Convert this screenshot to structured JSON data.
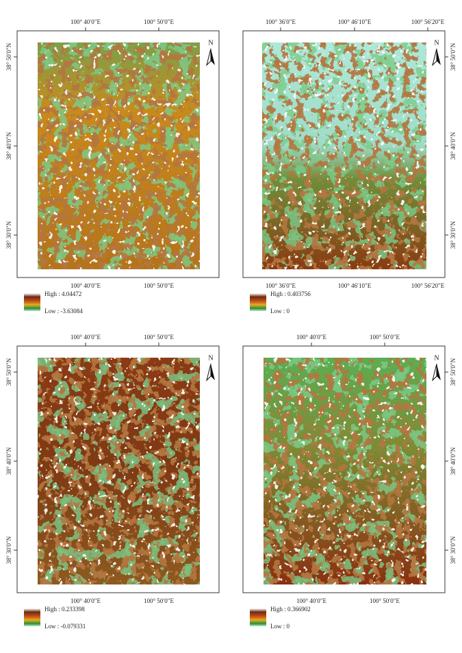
{
  "panels": [
    {
      "top_labels": [
        "100° 40′0″E",
        "100° 50′0″E"
      ],
      "bottom_labels": [
        "100° 40′0″E",
        "100° 50′0″E"
      ],
      "lat_labels": [
        "38° 50′0″N",
        "38° 40′0″N",
        "38° 30′0″N"
      ],
      "north": "N",
      "legend": {
        "high": "High : 4.04472",
        "low": "Low : -3.63084"
      }
    },
    {
      "top_labels": [
        "100° 36′0″E",
        "100° 46′10″E",
        "100° 56′20″E"
      ],
      "bottom_labels": [
        "100° 36′0″E",
        "100° 46′10″E",
        "100° 56′20″E"
      ],
      "lat_labels": [
        "38° 50′0″N",
        "38° 40′0″N",
        "38° 30′0″N"
      ],
      "north": "N",
      "legend": {
        "high": "High : 0.403756",
        "low": "Low : 0"
      }
    },
    {
      "top_labels": [
        "100° 40′0″E",
        "100° 50′0″E"
      ],
      "bottom_labels": [
        "100° 40′0″E",
        "100° 50′0″E"
      ],
      "lat_labels": [
        "38° 50′0″N",
        "38° 40′0″N",
        "38° 30′0″N"
      ],
      "north": "N",
      "legend": {
        "high": "High : 0.233398",
        "low": "Low : -0.079331"
      }
    },
    {
      "top_labels": [
        "100° 40′0″E",
        "100° 50′0″E"
      ],
      "bottom_labels": [
        "100° 40′0″E",
        "100° 50′0″E"
      ],
      "lat_labels": [
        "38° 50′0″N",
        "38° 40′0″N",
        "38° 30′0″N"
      ],
      "north": "N",
      "legend": {
        "high": "High : 0.366902",
        "low": "Low : 0"
      }
    }
  ]
}
